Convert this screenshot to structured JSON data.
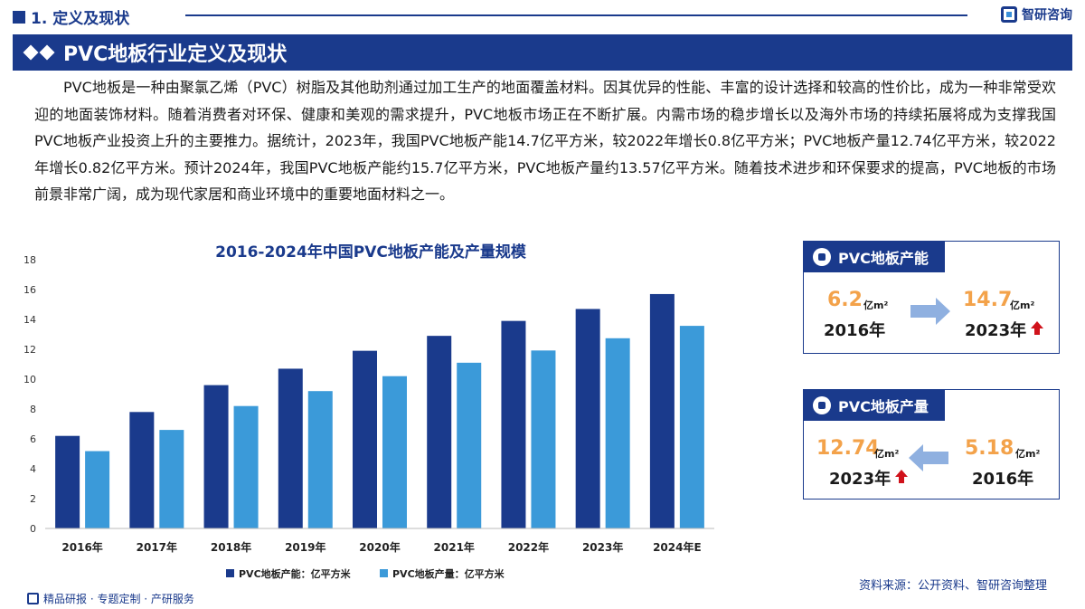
{
  "header": {
    "section": "1. 定义及现状",
    "brand": "智研咨询",
    "title": "PVC地板行业定义及现状"
  },
  "paragraph": "PVC地板是一种由聚氯乙烯（PVC）树脂及其他助剂通过加工生产的地面覆盖材料。因其优异的性能、丰富的设计选择和较高的性价比，成为一种非常受欢迎的地面装饰材料。随着消费者对环保、健康和美观的需求提升，PVC地板市场正在不断扩展。内需市场的稳步增长以及海外市场的持续拓展将成为支撑我国PVC地板产业投资上升的主要推力。据统计，2023年，我国PVC地板产能14.7亿平方米，较2022年增长0.8亿平方米；PVC地板产量12.74亿平方米，较2022年增长0.82亿平方米。预计2024年，我国PVC地板产能约15.7亿平方米，PVC地板产量约13.57亿平方米。随着技术进步和环保要求的提高，PVC地板的市场前景非常广阔，成为现代家居和商业环境中的重要地面材料之一。",
  "chart_data": {
    "type": "bar",
    "title": "2016-2024年中国PVC地板产能及产量规模",
    "categories": [
      "2016年",
      "2017年",
      "2018年",
      "2019年",
      "2020年",
      "2021年",
      "2022年",
      "2023年",
      "2024年E"
    ],
    "series": [
      {
        "name": "PVC地板产能：亿平方米",
        "color": "#1a3a8c",
        "values": [
          6.2,
          7.8,
          9.6,
          10.7,
          11.9,
          12.9,
          13.9,
          14.7,
          15.7
        ]
      },
      {
        "name": "PVC地板产量：亿平方米",
        "color": "#3b9ad9",
        "values": [
          5.18,
          6.6,
          8.2,
          9.2,
          10.2,
          11.1,
          11.92,
          12.74,
          13.57
        ]
      }
    ],
    "yticks": [
      "0",
      "2",
      "4",
      "6",
      "8",
      "10",
      "12",
      "14",
      "16",
      "18"
    ],
    "ylim": [
      0,
      18
    ],
    "legend": "bottom"
  },
  "cards": {
    "capacity": {
      "title": "PVC地板产能",
      "from_value": "6.2",
      "from_unit": "亿m²",
      "from_year": "2016年",
      "to_value": "14.7",
      "to_unit": "亿m²",
      "to_year": "2023年"
    },
    "output": {
      "title": "PVC地板产量",
      "to_value": "12.74",
      "to_unit": "亿m²",
      "to_year": "2023年",
      "from_value": "5.18",
      "from_unit": "亿m²",
      "from_year": "2016年"
    }
  },
  "footer": {
    "slogan": "精品研报 · 专题定制 · 产研服务",
    "source": "资料来源：公开资料、智研咨询整理"
  },
  "colors": {
    "primary": "#1a3a8c",
    "secondary": "#3b9ad9",
    "highlight": "#f3a24a",
    "up_arrow": "#d0121b"
  }
}
